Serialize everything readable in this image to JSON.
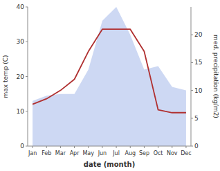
{
  "chart_data": {
    "type": "combo",
    "xlabel": "date (month)",
    "ylabel": "max temp (C)",
    "y2label": "med. precipitation (kg/m2)",
    "categories": [
      "Jan",
      "Feb",
      "Mar",
      "Apr",
      "May",
      "Jun",
      "Jul",
      "Aug",
      "Sep",
      "Oct",
      "Nov",
      "Dec"
    ],
    "series": [
      {
        "type": "area",
        "color": "#c8d4f2",
        "values": [
          13,
          14.5,
          15,
          15,
          22,
          36,
          40,
          32,
          22,
          23,
          17,
          16
        ]
      },
      {
        "type": "line",
        "axis": "y2",
        "color": "#b03030",
        "values": [
          7.5,
          8.5,
          10,
          12,
          17,
          21,
          21,
          21,
          17,
          6.5,
          6,
          6
        ]
      }
    ],
    "ylim": [
      0,
      40
    ],
    "yticks": [
      0,
      10,
      20,
      30,
      40
    ],
    "y2lim": [
      0,
      25
    ],
    "y2ticks": [
      0,
      5,
      10,
      15,
      20
    ],
    "grid": false
  }
}
